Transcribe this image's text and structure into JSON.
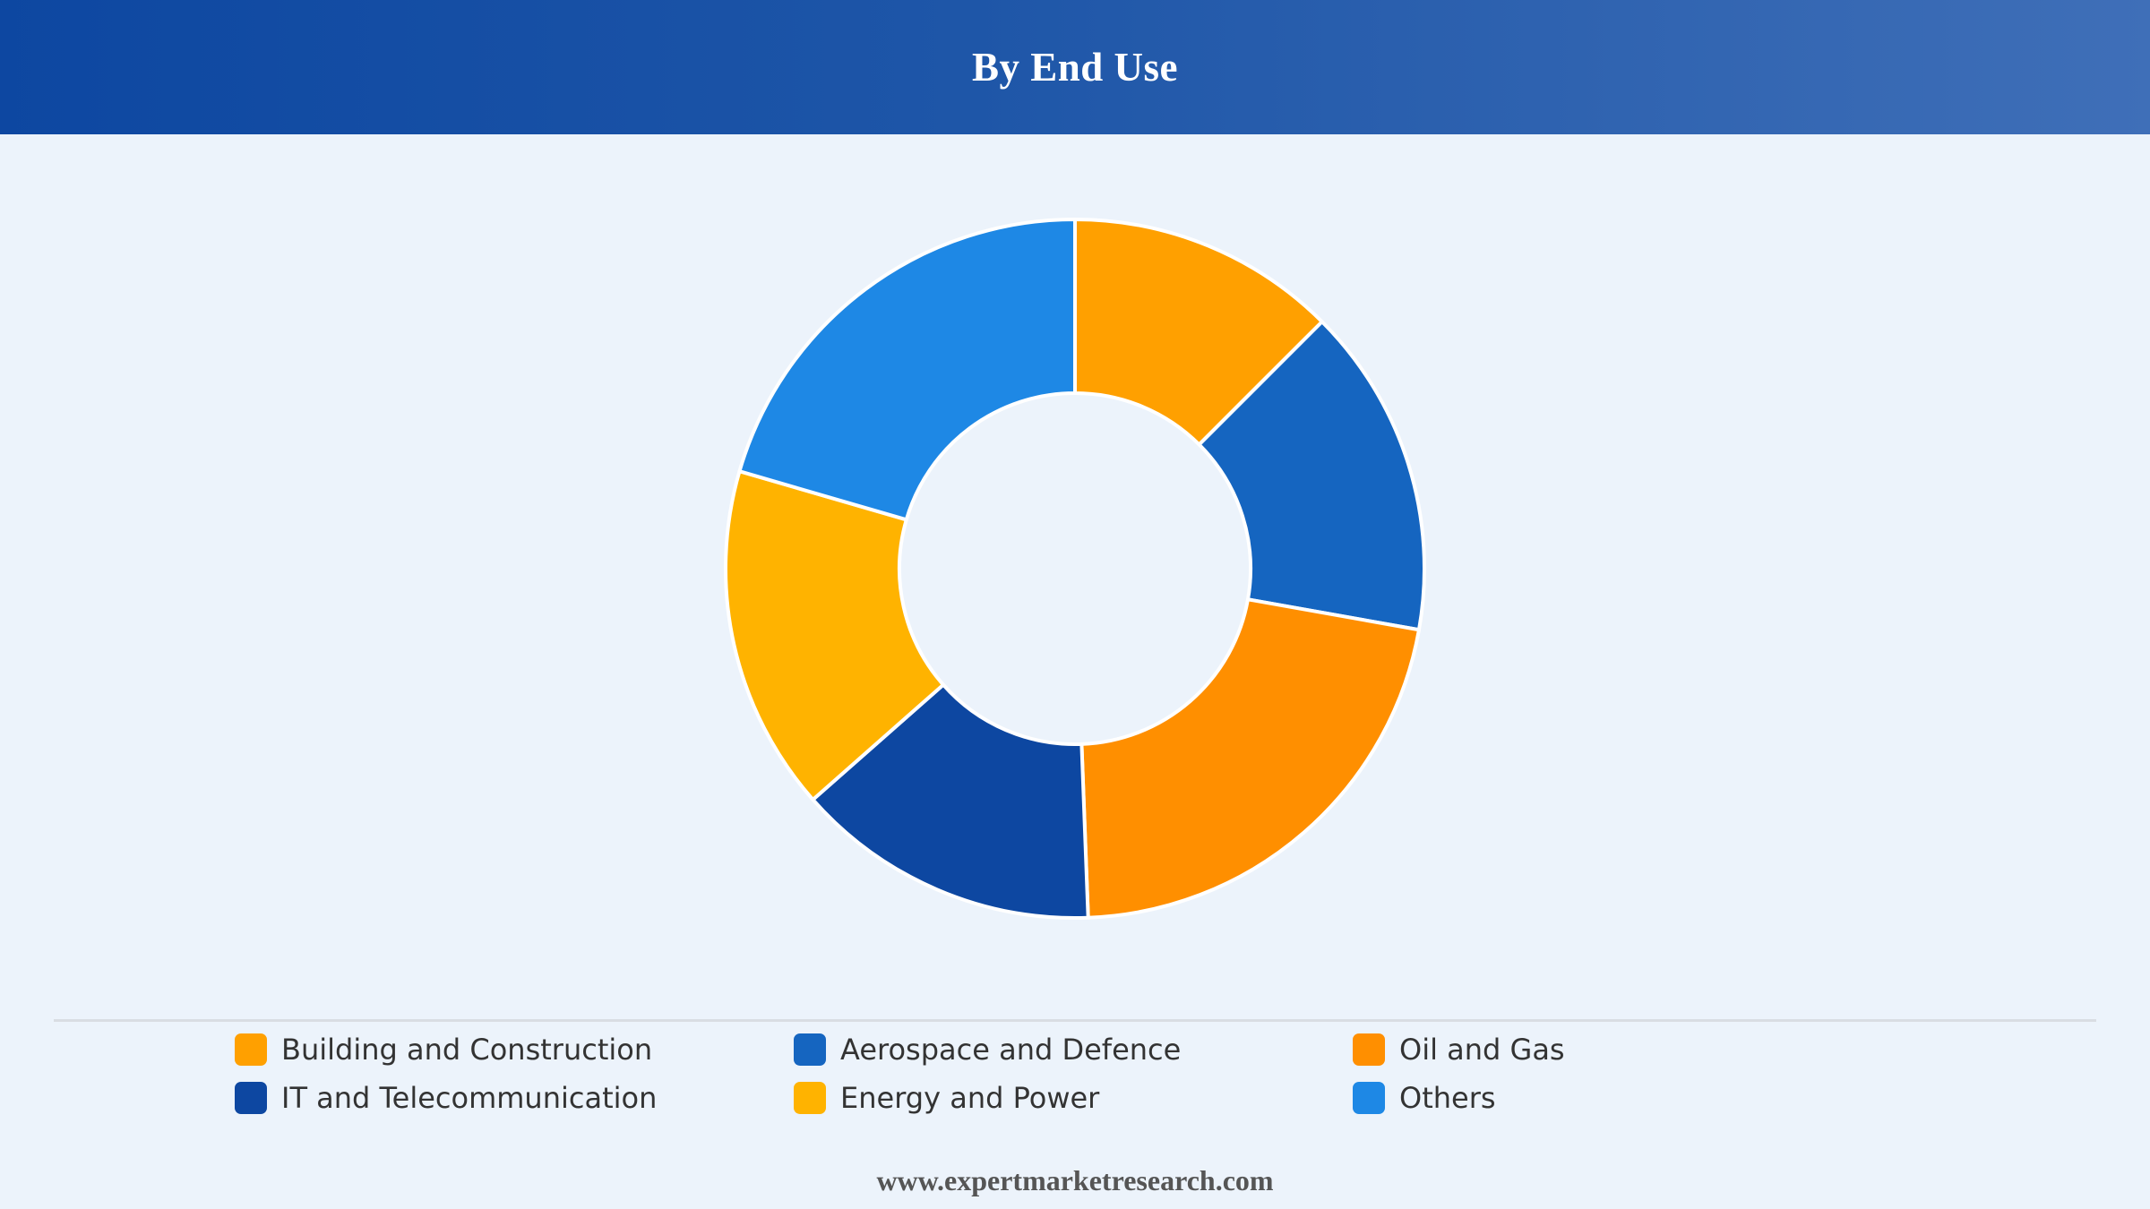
{
  "header": {
    "title": "By End Use"
  },
  "footer": {
    "website": "www.expertmarketresearch.com"
  },
  "chart_data": {
    "type": "pie",
    "variant": "donut",
    "title": "By End Use",
    "legend_position": "bottom",
    "categories": [
      "Building and Construction",
      "Aerospace and Defence",
      "Oil and Gas",
      "IT and Telecommunication",
      "Energy and Power",
      "Others"
    ],
    "values": [
      12.5,
      15.3,
      21.6,
      14.1,
      16.0,
      20.5
    ],
    "colors": [
      "#ffa000",
      "#1565c0",
      "#ff8f00",
      "#0d47a1",
      "#ffb300",
      "#1e88e5"
    ]
  }
}
